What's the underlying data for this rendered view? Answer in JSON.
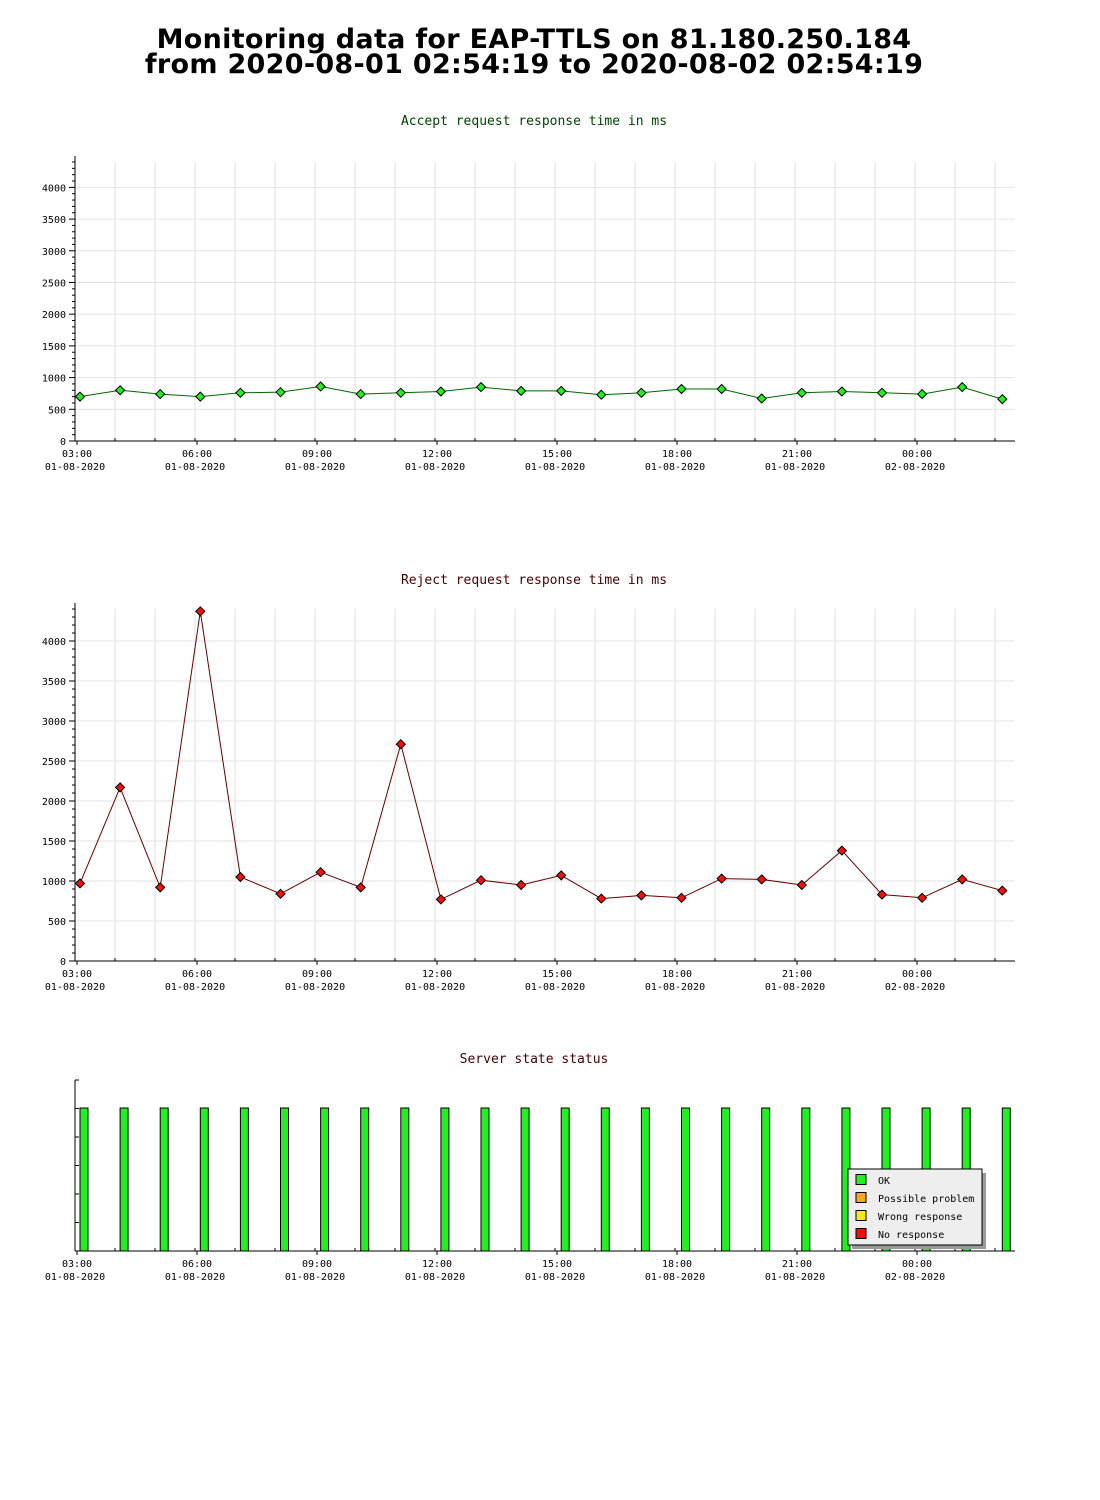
{
  "page": {
    "title_line_1": "Monitoring data for EAP-TTLS on 81.180.250.184",
    "title_line_2": "from 2020-08-01 02:54:19 to 2020-08-02 02:54:19"
  },
  "x_axis": {
    "tick_time_labels": [
      "03:00",
      "06:00",
      "09:00",
      "12:00",
      "15:00",
      "18:00",
      "21:00",
      "00:00"
    ],
    "tick_date_labels": [
      "01-08-2020",
      "01-08-2020",
      "01-08-2020",
      "01-08-2020",
      "01-08-2020",
      "01-08-2020",
      "01-08-2020",
      "02-08-2020"
    ]
  },
  "chart_data": [
    {
      "type": "line",
      "title": "Accept request response time in ms",
      "title_color": "#004400",
      "marker_color": "#22ee22",
      "line_color": "#006600",
      "x": [
        "2020-08-01 02:54",
        "2020-08-01 03:54",
        "2020-08-01 04:54",
        "2020-08-01 05:54",
        "2020-08-01 06:54",
        "2020-08-01 07:54",
        "2020-08-01 08:54",
        "2020-08-01 09:54",
        "2020-08-01 10:54",
        "2020-08-01 11:54",
        "2020-08-01 12:54",
        "2020-08-01 13:54",
        "2020-08-01 14:54",
        "2020-08-01 15:54",
        "2020-08-01 16:54",
        "2020-08-01 17:54",
        "2020-08-01 18:54",
        "2020-08-01 19:54",
        "2020-08-01 20:54",
        "2020-08-01 21:54",
        "2020-08-01 22:54",
        "2020-08-01 23:54",
        "2020-08-02 00:54",
        "2020-08-02 01:54"
      ],
      "values": [
        700,
        800,
        740,
        700,
        760,
        770,
        860,
        740,
        760,
        780,
        850,
        790,
        790,
        730,
        760,
        820,
        820,
        670,
        760,
        780,
        760,
        740,
        850,
        660
      ],
      "yticks": [
        0,
        500,
        1000,
        1500,
        2000,
        2500,
        3000,
        3500,
        4000
      ],
      "ylim": [
        0,
        4400
      ],
      "grid": true
    },
    {
      "type": "line",
      "title": "Reject request response time in ms",
      "title_color": "#440000",
      "marker_color": "#ee1111",
      "line_color": "#660000",
      "x": [
        "2020-08-01 02:54",
        "2020-08-01 03:54",
        "2020-08-01 04:54",
        "2020-08-01 05:54",
        "2020-08-01 06:54",
        "2020-08-01 07:54",
        "2020-08-01 08:54",
        "2020-08-01 09:54",
        "2020-08-01 10:54",
        "2020-08-01 11:54",
        "2020-08-01 12:54",
        "2020-08-01 13:54",
        "2020-08-01 14:54",
        "2020-08-01 15:54",
        "2020-08-01 16:54",
        "2020-08-01 17:54",
        "2020-08-01 18:54",
        "2020-08-01 19:54",
        "2020-08-01 20:54",
        "2020-08-01 21:54",
        "2020-08-01 22:54",
        "2020-08-01 23:54",
        "2020-08-02 00:54",
        "2020-08-02 01:54"
      ],
      "values": [
        970,
        2170,
        920,
        4370,
        1050,
        840,
        1110,
        920,
        2710,
        770,
        1010,
        950,
        1070,
        780,
        820,
        790,
        1030,
        1020,
        950,
        1380,
        830,
        790,
        1020,
        880
      ],
      "yticks": [
        0,
        500,
        1000,
        1500,
        2000,
        2500,
        3000,
        3500,
        4000
      ],
      "ylim": [
        0,
        4400
      ],
      "grid": true
    },
    {
      "type": "bar",
      "title": "Server state status",
      "title_color": "#440000",
      "x": [
        "2020-08-01 02:54",
        "2020-08-01 03:54",
        "2020-08-01 04:54",
        "2020-08-01 05:54",
        "2020-08-01 06:54",
        "2020-08-01 07:54",
        "2020-08-01 08:54",
        "2020-08-01 09:54",
        "2020-08-01 10:54",
        "2020-08-01 11:54",
        "2020-08-01 12:54",
        "2020-08-01 13:54",
        "2020-08-01 14:54",
        "2020-08-01 15:54",
        "2020-08-01 16:54",
        "2020-08-01 17:54",
        "2020-08-01 18:54",
        "2020-08-01 19:54",
        "2020-08-01 20:54",
        "2020-08-01 21:54",
        "2020-08-01 22:54",
        "2020-08-01 23:54",
        "2020-08-02 00:54",
        "2020-08-02 01:54"
      ],
      "states": [
        "OK",
        "OK",
        "OK",
        "OK",
        "OK",
        "OK",
        "OK",
        "OK",
        "OK",
        "OK",
        "OK",
        "OK",
        "OK",
        "OK",
        "OK",
        "OK",
        "OK",
        "OK",
        "OK",
        "OK",
        "OK",
        "OK",
        "OK",
        "OK"
      ],
      "grid": false,
      "legend": {
        "placement": "bottom-right",
        "entries": [
          {
            "label": "OK",
            "color": "#22ee22"
          },
          {
            "label": "Possible problem",
            "color": "#f5a623"
          },
          {
            "label": "Wrong response",
            "color": "#f5e623"
          },
          {
            "label": "No response",
            "color": "#ee1111"
          }
        ]
      }
    }
  ]
}
